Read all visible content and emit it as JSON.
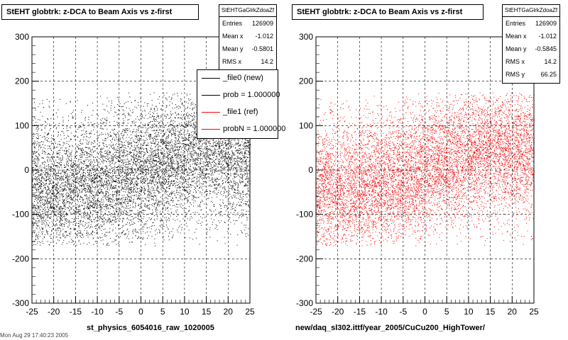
{
  "chart_data": [
    {
      "type": "scatter",
      "title": "StEHT globtrk: z-DCA to Beam Axis vs z-first",
      "color": "#000000",
      "xlim": [
        -25,
        25
      ],
      "ylim": [
        -300,
        300
      ],
      "x_ticks": [
        "-25",
        "-20",
        "-15",
        "-10",
        "-5",
        "0",
        "5",
        "10",
        "15",
        "20",
        "25"
      ],
      "y_ticks": [
        "300",
        "200",
        "100",
        "0",
        "-100",
        "-200",
        "-300"
      ],
      "grid": true,
      "stats": {
        "name": "StEHTGaGlrkZdoaZf",
        "rows": [
          {
            "label": "Entries",
            "value": "126909"
          },
          {
            "label": "Mean x",
            "value": "-1.012"
          },
          {
            "label": "Mean y",
            "value": "-0.5801"
          },
          {
            "label": "RMS x",
            "value": "14.2"
          }
        ]
      },
      "legend_position": "top-right",
      "legend": [
        {
          "label": "_file0 (new)",
          "color": "#000000"
        },
        {
          "label": "prob = 1.000000",
          "color": "#000000"
        },
        {
          "label": "_file1 (ref)",
          "color": "#ff0000"
        },
        {
          "label": "probN = 1.000000",
          "color": "#ff0000"
        }
      ],
      "footer": "st_physics_6054016_raw_1020005",
      "density_y_centers": [
        [
          -25,
          -50
        ],
        [
          -15,
          -40
        ],
        [
          -5,
          -20
        ],
        [
          5,
          20
        ],
        [
          15,
          50
        ],
        [
          25,
          40
        ]
      ],
      "y_spread": 70
    },
    {
      "type": "scatter",
      "title": "StEHT globtrk: z-DCA to Beam Axis vs z-first",
      "color": "#ff0000",
      "xlim": [
        -25,
        25
      ],
      "ylim": [
        -300,
        300
      ],
      "x_ticks": [
        "-25",
        "-20",
        "-15",
        "-10",
        "-5",
        "0",
        "5",
        "10",
        "15",
        "20",
        "25"
      ],
      "y_ticks": [
        "300",
        "200",
        "100",
        "0",
        "-100",
        "-200",
        "-300"
      ],
      "grid": true,
      "stats": {
        "name": "StEHTGaGlrkZdoaZf",
        "rows": [
          {
            "label": "Entries",
            "value": "126909"
          },
          {
            "label": "Mean x",
            "value": "-1.012"
          },
          {
            "label": "Mean y",
            "value": "-0.5845"
          },
          {
            "label": "RMS x",
            "value": "14.2"
          },
          {
            "label": "RMS y",
            "value": "66.25"
          }
        ]
      },
      "footer": "new/daq_sl302.ittf/year_2005/CuCu200_HighTower/",
      "density_y_centers": [
        [
          -25,
          -50
        ],
        [
          -15,
          -40
        ],
        [
          -5,
          -20
        ],
        [
          5,
          20
        ],
        [
          15,
          50
        ],
        [
          25,
          40
        ]
      ],
      "y_spread": 70
    }
  ],
  "bottom_left_note": "Mon Aug 29 17:40:23 2005"
}
